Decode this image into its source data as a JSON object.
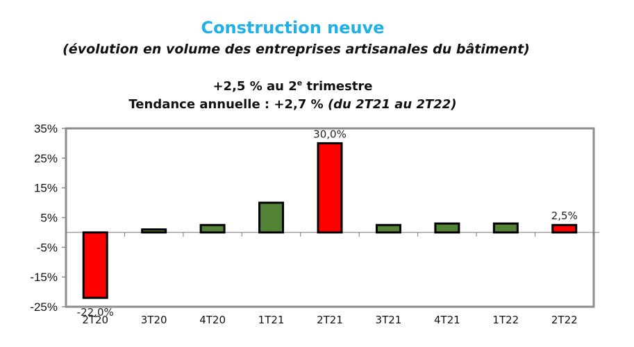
{
  "header": {
    "title": "Construction neuve",
    "subtitle": "(évolution en volume des entreprises artisanales du bâtiment)",
    "headline_prefix": "+2,5 % au 2",
    "headline_sup": "e",
    "headline_suffix": " trimestre",
    "trend_prefix": "Tendance annuelle : +2,7 % ",
    "trend_italic": "(du 2T21 au 2T22)"
  },
  "colors": {
    "title": "#1fb0e8",
    "bar_green": "#538135",
    "bar_red": "#ff0000",
    "frame": "#8c8c8c"
  },
  "chart_data": {
    "type": "bar",
    "title": "Construction neuve",
    "subtitle": "(évolution en volume des entreprises artisanales du bâtiment)",
    "categories": [
      "2T20",
      "3T20",
      "4T20",
      "1T21",
      "2T21",
      "3T21",
      "4T21",
      "1T22",
      "2T22"
    ],
    "values": [
      -22.0,
      1.0,
      2.5,
      10.0,
      30.0,
      2.5,
      3.0,
      3.0,
      2.5
    ],
    "bar_colors": [
      "red",
      "green",
      "green",
      "green",
      "red",
      "green",
      "green",
      "green",
      "red"
    ],
    "data_labels": {
      "0": "-22,0%",
      "4": "30,0%",
      "8": "2,5%"
    },
    "xlabel": "",
    "ylabel": "",
    "ylim": [
      -25,
      35
    ],
    "yticks": [
      "35%",
      "25%",
      "15%",
      "5%",
      "-5%",
      "-15%",
      "-25%"
    ],
    "grid": false,
    "legend": null
  }
}
